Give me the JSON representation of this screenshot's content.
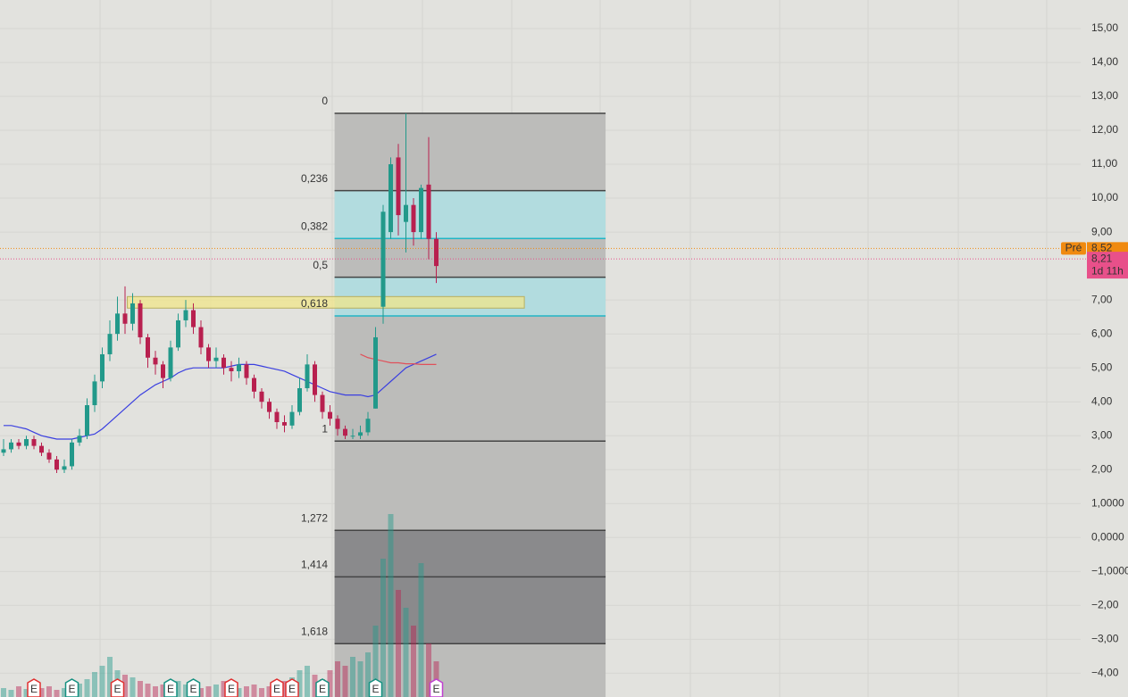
{
  "chart_data": {
    "type": "candlestick",
    "up_color": "#22998a",
    "down_color": "#b8204f",
    "candles": [
      [
        2.5,
        2.9,
        2.4,
        2.6
      ],
      [
        2.6,
        2.9,
        2.5,
        2.8
      ],
      [
        2.8,
        2.9,
        2.6,
        2.7
      ],
      [
        2.7,
        3.0,
        2.6,
        2.9
      ],
      [
        2.9,
        3.0,
        2.6,
        2.7
      ],
      [
        2.7,
        2.8,
        2.4,
        2.5
      ],
      [
        2.5,
        2.6,
        2.2,
        2.3
      ],
      [
        2.3,
        2.4,
        1.9,
        2.0
      ],
      [
        2.0,
        2.3,
        1.9,
        2.1
      ],
      [
        2.1,
        2.9,
        2.0,
        2.8
      ],
      [
        2.8,
        3.2,
        2.7,
        3.0
      ],
      [
        3.0,
        4.1,
        2.9,
        3.9
      ],
      [
        3.9,
        4.8,
        3.7,
        4.6
      ],
      [
        4.6,
        5.6,
        4.4,
        5.4
      ],
      [
        5.4,
        6.4,
        5.2,
        6.0
      ],
      [
        6.0,
        7.1,
        5.8,
        6.6
      ],
      [
        6.6,
        7.4,
        6.0,
        6.3
      ],
      [
        6.3,
        7.2,
        6.1,
        6.9
      ],
      [
        6.9,
        7.0,
        5.7,
        5.9
      ],
      [
        5.9,
        6.0,
        5.0,
        5.3
      ],
      [
        5.3,
        5.5,
        4.8,
        5.1
      ],
      [
        5.1,
        5.2,
        4.4,
        4.7
      ],
      [
        4.7,
        5.8,
        4.6,
        5.6
      ],
      [
        5.6,
        6.6,
        5.5,
        6.4
      ],
      [
        6.4,
        7.0,
        6.2,
        6.7
      ],
      [
        6.7,
        6.9,
        6.0,
        6.2
      ],
      [
        6.2,
        6.4,
        5.4,
        5.6
      ],
      [
        5.6,
        5.7,
        5.0,
        5.2
      ],
      [
        5.2,
        5.6,
        5.0,
        5.3
      ],
      [
        5.3,
        5.4,
        4.8,
        5.0
      ],
      [
        5.0,
        5.2,
        4.6,
        4.9
      ],
      [
        4.9,
        5.3,
        4.7,
        5.1
      ],
      [
        5.1,
        5.2,
        4.5,
        4.7
      ],
      [
        4.7,
        4.8,
        4.1,
        4.3
      ],
      [
        4.3,
        4.4,
        3.8,
        4.0
      ],
      [
        4.0,
        4.1,
        3.5,
        3.7
      ],
      [
        3.7,
        3.8,
        3.2,
        3.4
      ],
      [
        3.4,
        3.6,
        3.1,
        3.3
      ],
      [
        3.3,
        3.9,
        3.2,
        3.7
      ],
      [
        3.7,
        4.7,
        3.6,
        4.4
      ],
      [
        4.4,
        5.4,
        4.3,
        5.1
      ],
      [
        5.1,
        5.2,
        4.0,
        4.2
      ],
      [
        4.2,
        4.3,
        3.5,
        3.7
      ],
      [
        3.7,
        3.9,
        3.3,
        3.5
      ],
      [
        3.5,
        3.6,
        3.0,
        3.2
      ],
      [
        3.2,
        3.3,
        2.9,
        3.0
      ],
      [
        3.0,
        3.2,
        2.9,
        3.0
      ],
      [
        3.0,
        3.3,
        2.9,
        3.1
      ],
      [
        3.1,
        3.7,
        3.0,
        3.5
      ],
      [
        3.8,
        6.2,
        3.8,
        5.9
      ],
      [
        6.8,
        9.8,
        6.3,
        9.6
      ],
      [
        9.0,
        11.2,
        8.8,
        11.0
      ],
      [
        11.2,
        11.6,
        8.9,
        9.5
      ],
      [
        9.3,
        12.5,
        8.4,
        9.8
      ],
      [
        9.8,
        10.0,
        8.6,
        9.0
      ],
      [
        9.0,
        10.4,
        8.8,
        10.3
      ],
      [
        10.4,
        11.8,
        8.2,
        8.8
      ],
      [
        8.8,
        9.0,
        7.5,
        8.0
      ]
    ],
    "volume": [
      50,
      40,
      60,
      45,
      70,
      50,
      60,
      40,
      50,
      60,
      75,
      100,
      140,
      175,
      225,
      150,
      125,
      110,
      90,
      75,
      60,
      70,
      80,
      90,
      70,
      60,
      50,
      60,
      70,
      90,
      60,
      50,
      60,
      70,
      50,
      60,
      75,
      90,
      110,
      150,
      175,
      125,
      100,
      150,
      200,
      175,
      225,
      200,
      250,
      400,
      775,
      1025,
      600,
      500,
      400,
      750,
      300,
      200
    ],
    "moving_averages": [
      {
        "color": "#3a3fe0",
        "values": [
          3.3,
          3.3,
          3.25,
          3.2,
          3.1,
          3.0,
          2.95,
          2.9,
          2.9,
          2.9,
          2.95,
          3.0,
          3.05,
          3.2,
          3.4,
          3.6,
          3.8,
          4.0,
          4.2,
          4.35,
          4.5,
          4.6,
          4.7,
          4.85,
          4.95,
          5.0,
          5.0,
          5.0,
          5.0,
          5.0,
          5.05,
          5.1,
          5.1,
          5.1,
          5.05,
          5.0,
          4.95,
          4.9,
          4.8,
          4.7,
          4.6,
          4.5,
          4.4,
          4.3,
          4.25,
          4.2,
          4.2,
          4.2,
          4.15,
          4.2,
          4.4,
          4.6,
          4.8,
          5.0,
          5.1,
          5.2,
          5.3,
          5.4
        ]
      },
      {
        "color": "#e0505a",
        "values": [
          null,
          null,
          null,
          null,
          null,
          null,
          null,
          null,
          null,
          null,
          null,
          null,
          null,
          null,
          null,
          null,
          null,
          null,
          null,
          null,
          null,
          null,
          null,
          null,
          null,
          null,
          null,
          null,
          null,
          null,
          null,
          null,
          null,
          null,
          null,
          null,
          null,
          null,
          null,
          null,
          null,
          null,
          null,
          null,
          null,
          null,
          null,
          5.4,
          5.3,
          5.25,
          5.2,
          5.15,
          5.15,
          5.12,
          5.12,
          5.1,
          5.1,
          5.1
        ]
      }
    ],
    "earnings": [
      {
        "index": 4,
        "label": "E",
        "color": "#e03030"
      },
      {
        "index": 9,
        "label": "E",
        "color": "#159080"
      },
      {
        "index": 15,
        "label": "E",
        "color": "#e03030"
      },
      {
        "index": 22,
        "label": "E",
        "color": "#159080"
      },
      {
        "index": 25,
        "label": "E",
        "color": "#159080"
      },
      {
        "index": 30,
        "label": "E",
        "color": "#e03030"
      },
      {
        "index": 36,
        "label": "E",
        "color": "#e03030"
      },
      {
        "index": 38,
        "label": "E",
        "color": "#e03030"
      },
      {
        "index": 42,
        "label": "E",
        "color": "#159080"
      },
      {
        "index": 49,
        "label": "E",
        "color": "#159080"
      },
      {
        "index": 57,
        "label": "E",
        "color": "#c040d0"
      }
    ],
    "fibonacci": {
      "start": 43.6,
      "end": 79.3,
      "high": 12.5,
      "low": 2.84,
      "levels": [
        {
          "value": 0,
          "label": "0",
          "color": "#444"
        },
        {
          "value": 0.236,
          "label": "0,236",
          "color": "#444"
        },
        {
          "value": 0.382,
          "label": "0,382",
          "color": "#22b5c5"
        },
        {
          "value": 0.5,
          "label": "0,5",
          "color": "#444"
        },
        {
          "value": 0.618,
          "label": "0,618",
          "color": "#22b5c5"
        },
        {
          "value": 1,
          "label": "1",
          "color": "#444"
        },
        {
          "value": 1.272,
          "label": "1,272",
          "color": "#444"
        },
        {
          "value": 1.414,
          "label": "1,414",
          "color": "#444"
        },
        {
          "value": 1.618,
          "label": "1,618",
          "color": "#444"
        }
      ]
    },
    "zone": {
      "top": 7.1,
      "bottom": 6.76,
      "start": 16.3,
      "end": 68.6,
      "color": "#f0e68a"
    },
    "last_price": {
      "tag": "Pré",
      "value": 8.52,
      "label": "8,52",
      "color": "#f08a10"
    },
    "close_price": {
      "value": 8.21,
      "label": "8,21",
      "countdown": "1d 11h",
      "color": "#e8508a"
    },
    "ylim": [
      -4.7,
      15.84
    ],
    "yticks": [
      {
        "value": 15,
        "label": "15,00"
      },
      {
        "value": 14,
        "label": "14,00"
      },
      {
        "value": 13,
        "label": "13,00"
      },
      {
        "value": 12,
        "label": "12,00"
      },
      {
        "value": 11,
        "label": "11,00"
      },
      {
        "value": 10,
        "label": "10,00"
      },
      {
        "value": 9,
        "label": "9,00"
      },
      {
        "value": 7,
        "label": "7,00"
      },
      {
        "value": 6,
        "label": "6,00"
      },
      {
        "value": 5,
        "label": "5,00"
      },
      {
        "value": 4,
        "label": "4,00"
      },
      {
        "value": 3,
        "label": "3,00"
      },
      {
        "value": 2,
        "label": "2,00"
      },
      {
        "value": 1,
        "label": "1,0000"
      },
      {
        "value": 0,
        "label": "0,0000"
      },
      {
        "value": -1,
        "label": "−1,0000"
      },
      {
        "value": -2,
        "label": "−2,00"
      },
      {
        "value": -3,
        "label": "−3,00"
      },
      {
        "value": -4,
        "label": "−4,00"
      }
    ],
    "grid": true
  }
}
